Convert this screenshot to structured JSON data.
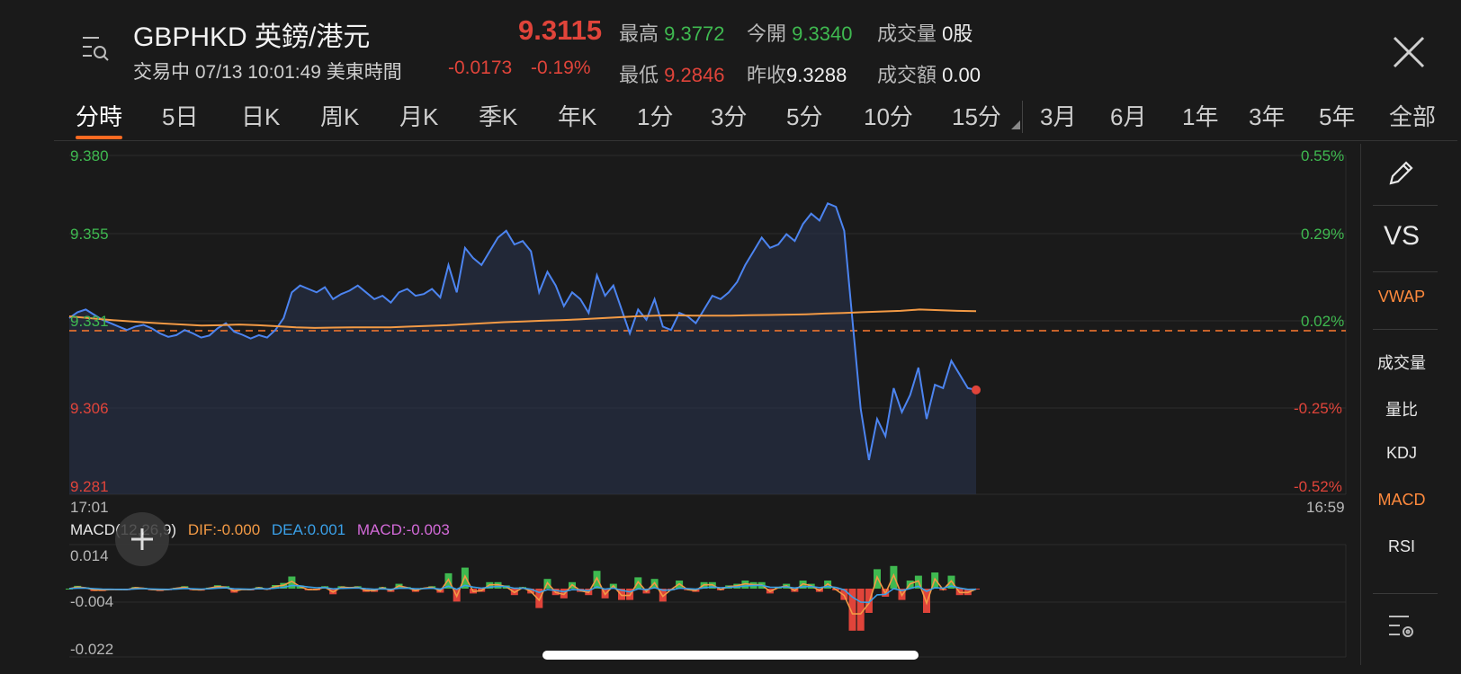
{
  "header": {
    "title": "GBPHKD 英鎊/港元",
    "status": "交易中 07/13 10:01:49 美東時間",
    "price": "9.3115",
    "change": "-0.0173",
    "change_pct": "-0.19%",
    "stats": {
      "high_label": "最高",
      "high": "9.3772",
      "open_label": "今開",
      "open": "9.3340",
      "volume_label": "成交量",
      "volume": "0股",
      "low_label": "最低",
      "low": "9.2846",
      "prev_close_label": "昨收",
      "prev_close": "9.3288",
      "turnover_label": "成交額",
      "turnover": "0.00"
    }
  },
  "tabs": [
    "分時",
    "5日",
    "日K",
    "周K",
    "月K",
    "季K",
    "年K",
    "1分",
    "3分",
    "5分",
    "10分",
    "15分",
    "3月",
    "6月",
    "1年",
    "3年",
    "5年",
    "全部"
  ],
  "side": {
    "vs": "VS",
    "vwap": "VWAP",
    "volume": "成交量",
    "volume_ratio": "量比",
    "kdj": "KDJ",
    "macd": "MACD",
    "rsi": "RSI"
  },
  "main_chart": {
    "y_left": [
      "9.380",
      "9.355",
      "9.331",
      "9.306",
      "9.281"
    ],
    "y_right": [
      "0.55%",
      "0.29%",
      "0.02%",
      "-0.25%",
      "-0.52%"
    ],
    "x_start": "17:01",
    "x_end": "16:59"
  },
  "macd": {
    "title": "MACD(12,26,9)",
    "dif": "DIF:-0.000",
    "dea": "DEA:0.001",
    "macd": "MACD:-0.003",
    "y_labels": [
      "0.014",
      "-0.004",
      "-0.022"
    ]
  },
  "chart_data": {
    "type": "line",
    "title": "",
    "xlabel": "",
    "ylabel": "",
    "ylim": [
      9.281,
      9.38
    ],
    "x_range": [
      "17:01",
      "16:59"
    ],
    "prev_close": 9.3288,
    "series": [
      {
        "values": [
          9.3325,
          9.3342,
          9.335,
          9.3335,
          9.332,
          9.331,
          9.33,
          9.329,
          9.33,
          9.3305,
          9.3295,
          9.328,
          9.327,
          9.3275,
          9.329,
          9.328,
          9.3268,
          9.3274,
          9.3295,
          9.331,
          9.3285,
          9.3276,
          9.3265,
          9.3275,
          9.3268,
          9.329,
          9.3325,
          9.34,
          9.342,
          9.341,
          9.34,
          9.3415,
          9.338,
          9.3395,
          9.3405,
          9.342,
          9.34,
          9.338,
          9.339,
          9.337,
          9.34,
          9.341,
          9.339,
          9.3395,
          9.341,
          9.3385,
          9.348,
          9.34,
          9.353,
          9.35,
          9.348,
          9.352,
          9.356,
          9.358,
          9.354,
          9.355,
          9.352,
          9.34,
          9.346,
          9.342,
          9.336,
          9.34,
          9.338,
          9.334,
          9.345,
          9.339,
          9.342,
          9.335,
          9.328,
          9.335,
          9.332,
          9.338,
          9.33,
          9.329,
          9.334,
          9.333,
          9.331,
          9.335,
          9.339,
          9.338,
          9.34,
          9.343,
          9.348,
          9.352,
          9.356,
          9.353,
          9.354,
          9.357,
          9.355,
          9.36,
          9.363,
          9.361,
          9.366,
          9.365,
          9.358,
          9.332,
          9.306,
          9.291,
          9.303,
          9.298,
          9.312,
          9.305,
          9.31,
          9.318,
          9.303,
          9.313,
          9.312,
          9.32,
          9.316,
          9.312,
          9.3115
        ]
      },
      {
        "values": [
          9.333,
          9.3325,
          9.332,
          9.3316,
          9.3312,
          9.3309,
          9.3306,
          9.3303,
          9.3304,
          9.3306,
          9.3304,
          9.3301,
          9.3298,
          9.3296,
          9.3297,
          9.3298,
          9.3298,
          9.3298,
          9.33,
          9.3302,
          9.3304,
          9.3307,
          9.331,
          9.3313,
          9.3315,
          9.3317,
          9.3319,
          9.3321,
          9.3324,
          9.3327,
          9.333,
          9.3332,
          9.3333,
          9.3332,
          9.3332,
          9.3332,
          9.3333,
          9.3334,
          9.3335,
          9.3336,
          9.3338,
          9.334,
          9.3342,
          9.3344,
          9.3346,
          9.335,
          9.3348,
          9.3346,
          9.3345
        ]
      }
    ]
  }
}
